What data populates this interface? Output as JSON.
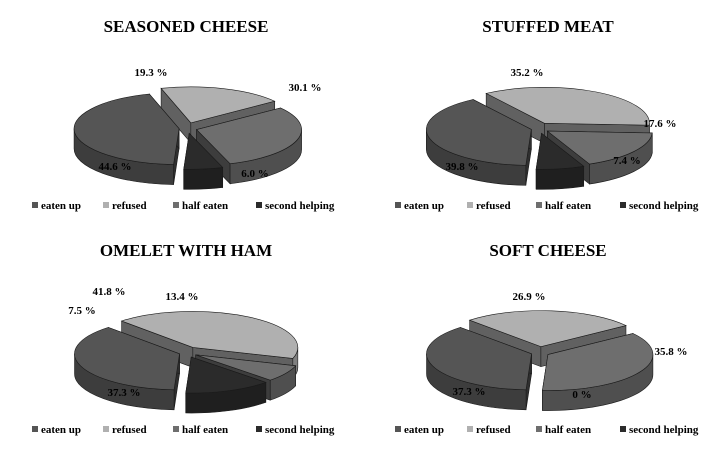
{
  "colors": {
    "eaten_up": "#555555",
    "refused": "#b0b0b0",
    "half_eaten": "#6e6e6e",
    "second_helping": "#2b2b2b"
  },
  "chart_data": [
    {
      "type": "pie",
      "title": "SEASONED CHEESE",
      "categories": [
        "eaten up",
        "refused",
        "half eaten",
        "second helping"
      ],
      "values": [
        44.6,
        19.3,
        30.1,
        6.0
      ],
      "labels": [
        "44.6 %",
        "19.3 %",
        "30.1 %",
        "6.0 %"
      ],
      "legend": "bottom"
    },
    {
      "type": "pie",
      "title": "STUFFED MEAT",
      "categories": [
        "eaten up",
        "refused",
        "half eaten",
        "second helping"
      ],
      "values": [
        39.8,
        35.2,
        17.6,
        7.4
      ],
      "labels": [
        "39.8 %",
        "35.2 %",
        "17.6 %",
        "7.4 %"
      ],
      "legend": "bottom"
    },
    {
      "type": "pie",
      "title": "OMELET WITH HAM",
      "categories": [
        "eaten up",
        "refused",
        "half eaten",
        "second helping"
      ],
      "values": [
        37.3,
        41.8,
        7.5,
        13.4
      ],
      "labels": [
        "37.3 %",
        "41.8 %",
        "7.5 %",
        "13.4 %"
      ],
      "legend": "bottom"
    },
    {
      "type": "pie",
      "title": "SOFT CHEESE",
      "categories": [
        "eaten up",
        "refused",
        "half eaten",
        "second helping"
      ],
      "values": [
        37.3,
        26.9,
        35.8,
        0
      ],
      "labels": [
        "37.3 %",
        "26.9 %",
        "35.8 %",
        "0 %"
      ],
      "legend": "bottom"
    }
  ]
}
